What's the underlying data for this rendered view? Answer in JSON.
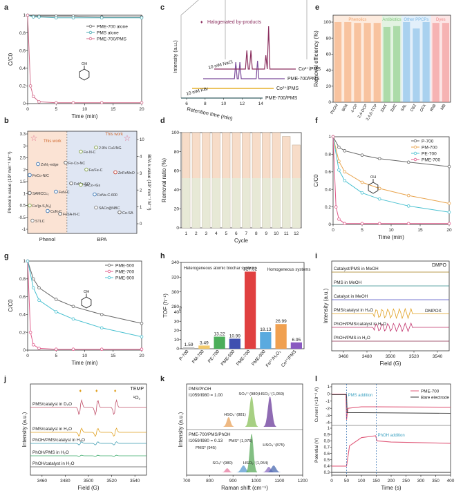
{
  "chart_data": [
    {
      "panel": "a",
      "type": "line",
      "xlabel": "Time (min)",
      "ylabel": "C/C0",
      "xlim": [
        0,
        20
      ],
      "ylim": [
        0,
        1.0
      ],
      "xticks": [
        0,
        5,
        10,
        15,
        20
      ],
      "yticks": [
        0,
        0.2,
        0.4,
        0.6,
        0.8,
        1.0
      ],
      "molecule": "OH",
      "series": [
        {
          "name": "PME-700 alone",
          "color": "#666666",
          "x": [
            0,
            1,
            2,
            5,
            8,
            13,
            20
          ],
          "values": [
            1.0,
            0.99,
            0.99,
            0.99,
            0.99,
            0.98,
            0.98
          ]
        },
        {
          "name": "PMS alone",
          "color": "#48aab3",
          "x": [
            0,
            1,
            2,
            5,
            8,
            13,
            20
          ],
          "values": [
            1.0,
            0.98,
            0.98,
            0.97,
            0.97,
            0.97,
            0.97
          ]
        },
        {
          "name": "PME-700/PMS",
          "color": "#d36a8a",
          "x": [
            0,
            0.5,
            1,
            2,
            5,
            8,
            13,
            20
          ],
          "values": [
            1.0,
            0.2,
            0.08,
            0.02,
            0.01,
            0.01,
            0.01,
            0.01
          ]
        }
      ]
    },
    {
      "panel": "b",
      "type": "scatter",
      "ylabel_left": "Phenol k-value (10² min⁻¹ M⁻¹)",
      "ylabel_right": "BPA k-value (10² min⁻¹ M⁻¹)",
      "yticks_left": [
        -1.0,
        -0.5,
        0.5,
        1.0,
        1.5,
        2.0,
        2.5,
        3.0,
        3.3
      ],
      "yticks_right": [
        0,
        1,
        2,
        3,
        4,
        10
      ],
      "categories": [
        "Phenol",
        "BPA"
      ],
      "this_work_label": "This work",
      "points": [
        {
          "label": "FeCo-N/C",
          "color": "#2b6cb0"
        },
        {
          "label": "SAMCCc₂",
          "color": "#555555"
        },
        {
          "label": "Fe/(p-S₁N₃)",
          "color": "#7a9a3a"
        },
        {
          "label": "STLC",
          "color": "#777777"
        },
        {
          "label": "ZnN₂-edge",
          "color": "#2b6cb0"
        },
        {
          "label": "Fe-Co-NC",
          "color": "#555555"
        },
        {
          "label": "Fe-N-C",
          "color": "#7a9a3a"
        },
        {
          "label": "FeN-C",
          "color": "#2b6cb0"
        },
        {
          "label": "FeMn-SO",
          "color": "#555555"
        },
        {
          "label": "SACo-rGs",
          "color": "#7a9a3a"
        },
        {
          "label": "FeNx-C-600",
          "color": "#2b6cb0"
        },
        {
          "label": "SACo@NBC",
          "color": "#777777"
        },
        {
          "label": "2.9% Cu1/NG",
          "color": "#7a9a3a"
        },
        {
          "label": "ZnFeMnO",
          "color": "#c0392b"
        },
        {
          "label": "CoN-C",
          "color": "#2b6cb0"
        },
        {
          "label": "FeSA-N-C",
          "color": "#555555"
        },
        {
          "label": "Fe/Fe-C",
          "color": "#7a9a3a"
        },
        {
          "label": "Co-SA",
          "color": "#555555"
        }
      ]
    },
    {
      "panel": "c",
      "type": "line",
      "xlabel": "Retention time (min)",
      "ylabel": "Intensity (a.u.)",
      "xticks": [
        6,
        8,
        10,
        12,
        14
      ],
      "annotation": "Halogenated by-products",
      "series": [
        {
          "name": "PME-700/PMS",
          "color": "#3a9aa8"
        },
        {
          "name": "Co²⁺/PMS",
          "color": "#e0a000"
        },
        {
          "name": "PME-700/PMS",
          "color": "#7a4a9a"
        },
        {
          "name": "Co²⁺/PMS",
          "color": "#8a2e5e"
        }
      ],
      "labels": [
        "10 mM KBr",
        "10 mM NaCl"
      ]
    },
    {
      "panel": "d",
      "type": "bar",
      "xlabel": "Cycle",
      "ylabel": "Removal ratio (%)",
      "categories": [
        "1",
        "2",
        "3",
        "4",
        "5",
        "6",
        "7",
        "8",
        "9",
        "10",
        "11",
        "12"
      ],
      "values": [
        100,
        100,
        100,
        100,
        100,
        100,
        100,
        100,
        100,
        100,
        96,
        87
      ],
      "ylim": [
        0,
        100
      ],
      "yticks": [
        0,
        20,
        40,
        60,
        80,
        100
      ]
    },
    {
      "panel": "e",
      "type": "bar",
      "ylabel": "Removal efficiency (%)",
      "categories": [
        "PhOH",
        "BPA",
        "4-CP",
        "2,4-DCP",
        "2,4,6-TCP",
        "SMX",
        "SMZ",
        "SAL",
        "CBZ",
        "OFX",
        "RhB",
        "MB"
      ],
      "values": [
        100,
        100,
        99,
        99,
        99,
        94,
        95,
        100,
        92,
        100,
        99,
        99
      ],
      "ylim": [
        0,
        100
      ],
      "yticks": [
        0,
        20,
        40,
        60,
        80,
        100
      ],
      "groups": [
        {
          "name": "Phenolics",
          "color": "#f4a36b"
        },
        {
          "name": "Antibiotics",
          "color": "#7fc77a"
        },
        {
          "name": "Other PPCPs",
          "color": "#7ab8e6"
        },
        {
          "name": "Dyes",
          "color": "#f08a8a"
        }
      ]
    },
    {
      "panel": "f",
      "type": "line",
      "xlabel": "Time (min)",
      "ylabel": "C/C0",
      "xlim": [
        0,
        20
      ],
      "ylim": [
        0,
        1.0
      ],
      "xticks": [
        0,
        5,
        10,
        15,
        20
      ],
      "yticks": [
        0,
        0.2,
        0.4,
        0.6,
        0.8,
        1.0
      ],
      "molecule": "OH",
      "series": [
        {
          "name": "P-700",
          "color": "#666666",
          "x": [
            0,
            1,
            2,
            5,
            8,
            13,
            20
          ],
          "values": [
            1.0,
            0.88,
            0.84,
            0.79,
            0.75,
            0.71,
            0.66
          ]
        },
        {
          "name": "PM-700",
          "color": "#e8a24a",
          "x": [
            0,
            1,
            2,
            5,
            8,
            13,
            20
          ],
          "values": [
            1.0,
            0.72,
            0.6,
            0.48,
            0.41,
            0.33,
            0.24
          ]
        },
        {
          "name": "PE-700",
          "color": "#48c0d0",
          "x": [
            0,
            1,
            2,
            5,
            8,
            13,
            20
          ],
          "values": [
            1.0,
            0.62,
            0.5,
            0.36,
            0.29,
            0.21,
            0.14
          ]
        },
        {
          "name": "PME-700",
          "color": "#e05a8a",
          "x": [
            0,
            0.5,
            1,
            2,
            5,
            8,
            13,
            20
          ],
          "values": [
            1.0,
            0.2,
            0.06,
            0.01,
            0.01,
            0.01,
            0.01,
            0.01
          ]
        }
      ]
    },
    {
      "panel": "g",
      "type": "line",
      "xlabel": "Time (min)",
      "ylabel": "C/C0",
      "xlim": [
        0,
        20
      ],
      "ylim": [
        0,
        1.0
      ],
      "xticks": [
        0,
        5,
        10,
        15,
        20
      ],
      "yticks": [
        0,
        0.2,
        0.4,
        0.6,
        0.8,
        1.0
      ],
      "molecule": "OH",
      "series": [
        {
          "name": "PME-500",
          "color": "#666666",
          "x": [
            0,
            1,
            2,
            5,
            8,
            13,
            20
          ],
          "values": [
            1.0,
            0.8,
            0.7,
            0.57,
            0.49,
            0.4,
            0.3
          ]
        },
        {
          "name": "PME-700",
          "color": "#e05a8a",
          "x": [
            0,
            0.5,
            1,
            2,
            5,
            8,
            13,
            20
          ],
          "values": [
            1.0,
            0.2,
            0.06,
            0.02,
            0.01,
            0.01,
            0.01,
            0.01
          ]
        },
        {
          "name": "PME-900",
          "color": "#48c0d0",
          "x": [
            0,
            1,
            2,
            5,
            8,
            13,
            20
          ],
          "values": [
            1.0,
            0.7,
            0.56,
            0.43,
            0.35,
            0.25,
            0.15
          ]
        }
      ]
    },
    {
      "panel": "h",
      "type": "bar",
      "ylabel": "TOF (h⁻¹)",
      "categories": [
        "P-700",
        "PM-700",
        "PE-700",
        "PME-500",
        "PME-700",
        "PME-900",
        "Fe²⁺/H₂O₂",
        "Co²⁺/PMS"
      ],
      "values": [
        1.59,
        3.49,
        13.22,
        10.99,
        327.52,
        18.13,
        26.99,
        6.95
      ],
      "value_labels": [
        "1.59",
        "3.49",
        "13.22",
        "10.99",
        "327.52",
        "18.13",
        "26.99",
        "6.95"
      ],
      "colors": [
        "#bdbdbd",
        "#f2c96b",
        "#4cae5a",
        "#3f4fb0",
        "#e04040",
        "#5aaadf",
        "#f0a050",
        "#8a5ac0"
      ],
      "yticks": [
        0,
        10,
        20,
        30,
        40,
        280,
        300,
        320,
        340
      ],
      "annotations": [
        "Heterogeneous atomic biochar systems",
        "Homogeneous systems"
      ]
    },
    {
      "panel": "i",
      "type": "line",
      "xlabel": "Field (G)",
      "ylabel": "Intensity (a.u.)",
      "xticks": [
        3460,
        3480,
        3500,
        3520,
        3540
      ],
      "tag": "DMPO",
      "peak_label": "DMPOX",
      "series": [
        {
          "name": "Catalyst/PMS in MeOH",
          "color": "#a07a10"
        },
        {
          "name": "PMS in MeOH",
          "color": "#2a8a8a"
        },
        {
          "name": "Catalyst in MeOH",
          "color": "#4a4ac0"
        },
        {
          "name": "PMS/catalyst in H₂O",
          "color": "#e0a020"
        },
        {
          "name": "PhOH/PMS/catalyst in H₂O",
          "color": "#c0306a"
        },
        {
          "name": "PhOH/PMS in H₂O",
          "color": "#8a2a4a"
        }
      ]
    },
    {
      "panel": "j",
      "type": "line",
      "xlabel": "Field (G)",
      "ylabel": "Intensity (a.u.)",
      "xticks": [
        3460,
        3480,
        3500,
        3520,
        3540
      ],
      "tag": "TEMP",
      "peak_label": "¹O₂",
      "series": [
        {
          "name": "PMS/catalyst in D₂O",
          "color": "#c0506a"
        },
        {
          "name": "PMS/catalyst in H₂O",
          "color": "#e0a020"
        },
        {
          "name": "PhOH/PMS/catalyst in H₂O",
          "color": "#3a9ab0"
        },
        {
          "name": "PhOH/PMS in H₂O",
          "color": "#3aaa6a"
        },
        {
          "name": "PhOH/catalyst in H₂O",
          "color": "#555555"
        }
      ]
    },
    {
      "panel": "k",
      "type": "line",
      "xlabel": "Raman shift (cm⁻¹)",
      "ylabel": "Intensity (a.u.)",
      "xticks": [
        700,
        800,
        900,
        1000,
        1100,
        1200
      ],
      "top_title": "PMS/PhOH",
      "top_ratio": "I1059/I980 = 1.00",
      "bottom_title": "PME-700/PMS/PhOH",
      "bottom_ratio": "I1059/I980 = 0.13",
      "peaks": [
        "HSO₄⁻(881)",
        "SO₄²⁻(980)",
        "HSO₅⁻(1,059)",
        "PMS* (945)",
        "PMS* (1,075)",
        "HSO₄⁻(875)",
        "SO₄²⁻(980)",
        "HSO₅⁻(1,054)"
      ]
    },
    {
      "panel": "l",
      "type": "line",
      "xlabel": "Time (s)",
      "ylabel_top": "Current (×10⁻⁶ A)",
      "ylabel_bottom": "Potential (V)",
      "xticks": [
        0,
        50,
        100,
        150,
        200,
        250,
        300,
        350,
        400
      ],
      "yticks_top": [
        1,
        0,
        -1,
        -2,
        -3,
        -4
      ],
      "yticks_bottom": [
        0.3,
        0.4,
        0.5,
        0.6,
        0.7,
        0.8,
        0.9,
        1.0
      ],
      "annotations": [
        "PMS addition",
        "PhOH addition"
      ],
      "series": [
        {
          "name": "PME-700",
          "color": "#e05a7a"
        },
        {
          "name": "Bare electrode",
          "color": "#333333"
        }
      ]
    }
  ],
  "panel_letters": [
    "a",
    "b",
    "c",
    "d",
    "e",
    "f",
    "g",
    "h",
    "i",
    "j",
    "k",
    "l"
  ]
}
